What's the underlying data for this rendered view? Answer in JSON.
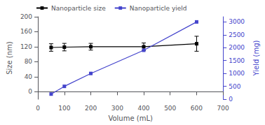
{
  "chart_data": {
    "type": "line",
    "xlabel": "Volume (mL)",
    "ylabel": "Size (nm)",
    "y2label": "Yield (mg)",
    "x": [
      50,
      100,
      200,
      400,
      600
    ],
    "series": [
      {
        "name": "Nanoparticle size",
        "color": "black",
        "marker": "square",
        "values": [
          118,
          119,
          120,
          120,
          128
        ],
        "errors": [
          10,
          10,
          9,
          10,
          20
        ]
      },
      {
        "name": "Nanoparticle yield",
        "color": "#4444cc",
        "marker": "square",
        "axis": "y2",
        "values": [
          200,
          500,
          1000,
          1900,
          3000
        ]
      }
    ],
    "xlim": [
      0,
      700
    ],
    "xticks": [
      0,
      100,
      200,
      300,
      400,
      500,
      600,
      700
    ],
    "ylim": [
      -20,
      200
    ],
    "yticks": [
      0,
      40,
      80,
      120,
      160,
      200
    ],
    "y2lim": [
      0,
      3200
    ],
    "y2ticks": [
      0,
      500,
      1000,
      1500,
      2000,
      2500,
      3000
    ],
    "legend": "upper left",
    "grid": false
  }
}
